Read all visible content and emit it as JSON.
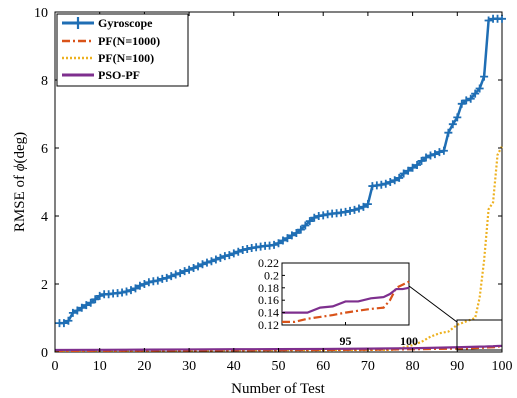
{
  "chart_data": {
    "type": "line",
    "title": "",
    "xlabel": "Number of Test",
    "ylabel_prefix": "RMSE of ",
    "ylabel_symbol": "ϕ",
    "ylabel_suffix": "(deg)",
    "xlim": [
      0,
      100
    ],
    "ylim": [
      0,
      10
    ],
    "xticks": [
      0,
      10,
      20,
      30,
      40,
      50,
      60,
      70,
      80,
      90,
      100
    ],
    "yticks": [
      0,
      2,
      4,
      6,
      8,
      10
    ],
    "grid": false,
    "legend_position": "top-left",
    "series": [
      {
        "name": "Gyroscope",
        "color": "#1f6eb4",
        "style": "solid-plus-markers",
        "x": [
          1,
          2,
          3,
          4,
          5,
          6,
          7,
          8,
          9,
          10,
          11,
          12,
          13,
          14,
          15,
          16,
          17,
          18,
          19,
          20,
          21,
          22,
          23,
          24,
          25,
          26,
          27,
          28,
          29,
          30,
          31,
          32,
          33,
          34,
          35,
          36,
          37,
          38,
          39,
          40,
          41,
          42,
          43,
          44,
          45,
          46,
          47,
          48,
          49,
          50,
          51,
          52,
          53,
          54,
          55,
          56,
          57,
          58,
          59,
          60,
          61,
          62,
          63,
          64,
          65,
          66,
          67,
          68,
          69,
          70,
          71,
          72,
          73,
          74,
          75,
          76,
          77,
          78,
          79,
          80,
          81,
          82,
          83,
          84,
          85,
          86,
          87,
          88,
          89,
          90,
          91,
          92,
          93,
          94,
          95,
          96,
          97,
          98,
          99,
          100
        ],
        "y": [
          0.85,
          0.85,
          0.92,
          1.15,
          1.22,
          1.3,
          1.38,
          1.45,
          1.55,
          1.65,
          1.7,
          1.7,
          1.72,
          1.73,
          1.75,
          1.78,
          1.82,
          1.87,
          1.95,
          2.0,
          2.05,
          2.08,
          2.1,
          2.15,
          2.18,
          2.23,
          2.28,
          2.32,
          2.38,
          2.42,
          2.47,
          2.52,
          2.58,
          2.63,
          2.67,
          2.72,
          2.77,
          2.82,
          2.85,
          2.9,
          2.95,
          3.0,
          3.03,
          3.06,
          3.08,
          3.1,
          3.12,
          3.13,
          3.15,
          3.2,
          3.28,
          3.35,
          3.43,
          3.5,
          3.6,
          3.72,
          3.85,
          3.95,
          4.0,
          4.02,
          4.05,
          4.07,
          4.08,
          4.1,
          4.12,
          4.15,
          4.18,
          4.22,
          4.27,
          4.35,
          4.88,
          4.9,
          4.92,
          4.95,
          5.0,
          5.05,
          5.12,
          5.25,
          5.33,
          5.42,
          5.5,
          5.62,
          5.72,
          5.78,
          5.82,
          5.88,
          5.92,
          6.45,
          6.7,
          6.9,
          7.3,
          7.4,
          7.45,
          7.6,
          7.75,
          8.1,
          9.75,
          9.8,
          9.8,
          9.8
        ]
      },
      {
        "name": "PF(N=1000)",
        "color": "#d95319",
        "style": "dash-dot",
        "x": [
          0,
          10,
          20,
          30,
          40,
          50,
          60,
          70,
          80,
          85,
          90,
          93,
          95,
          96,
          97,
          98,
          99,
          100
        ],
        "y": [
          0.03,
          0.035,
          0.04,
          0.045,
          0.05,
          0.055,
          0.06,
          0.068,
          0.08,
          0.09,
          0.1,
          0.11,
          0.12,
          0.125,
          0.135,
          0.14,
          0.15,
          0.19
        ]
      },
      {
        "name": "PF(N=100)",
        "color": "#edb120",
        "style": "dotted",
        "x": [
          0,
          20,
          40,
          60,
          70,
          76,
          80,
          82,
          84,
          86,
          88,
          90,
          92,
          94,
          95,
          96,
          97,
          98,
          99,
          100
        ],
        "y": [
          0.04,
          0.045,
          0.05,
          0.055,
          0.06,
          0.065,
          0.2,
          0.3,
          0.45,
          0.55,
          0.6,
          0.8,
          0.9,
          1.0,
          1.6,
          2.7,
          4.2,
          4.4,
          5.8,
          6.05
        ]
      },
      {
        "name": "PSO-PF",
        "color": "#7e2f8e",
        "style": "solid",
        "x": [
          0,
          10,
          20,
          30,
          40,
          50,
          60,
          70,
          80,
          85,
          90,
          93,
          95,
          96,
          97,
          98,
          99,
          100
        ],
        "y": [
          0.06,
          0.065,
          0.07,
          0.075,
          0.08,
          0.085,
          0.09,
          0.1,
          0.11,
          0.125,
          0.14,
          0.15,
          0.158,
          0.158,
          0.165,
          0.17,
          0.178,
          0.18
        ]
      }
    ],
    "inset": {
      "xlim": [
        90,
        100
      ],
      "ylim": [
        0.12,
        0.22
      ],
      "xticks": [
        95,
        100
      ],
      "yticks": [
        0.12,
        0.14,
        0.16,
        0.18,
        0.2,
        0.22
      ],
      "ytick_labels": [
        "0.12",
        "0.14",
        "0.16",
        "0.18",
        "0.2",
        "0.22"
      ],
      "series": [
        {
          "name": "PF(N=1000)",
          "x": [
            90,
            91,
            92,
            93,
            94,
            95,
            96,
            97,
            98,
            98.5,
            99,
            99.5,
            100
          ],
          "y": [
            0.125,
            0.125,
            0.13,
            0.133,
            0.136,
            0.14,
            0.143,
            0.146,
            0.148,
            0.16,
            0.18,
            0.185,
            0.19
          ]
        },
        {
          "name": "PSO-PF",
          "x": [
            90,
            91,
            92,
            93,
            94,
            95,
            96,
            97,
            98,
            98.5,
            99,
            99.5,
            100
          ],
          "y": [
            0.14,
            0.14,
            0.14,
            0.148,
            0.15,
            0.158,
            0.158,
            0.163,
            0.165,
            0.17,
            0.178,
            0.178,
            0.18
          ]
        }
      ]
    }
  }
}
